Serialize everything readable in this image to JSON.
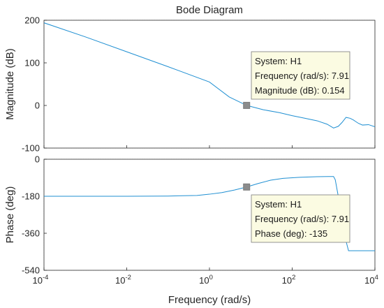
{
  "title": "Bode Diagram",
  "xlabel": "Frequency  (rad/s)",
  "colors": {
    "series": "#1f8fd2",
    "datatip_bg": "#fbfbe2",
    "marker": "#8c8c8c"
  },
  "chart_data": [
    {
      "type": "line",
      "panel": "magnitude",
      "title": "Bode Diagram",
      "xlabel": "Frequency  (rad/s)",
      "ylabel": "Magnitude (dB)",
      "xscale": "log",
      "xlim": [
        0.0001,
        10000
      ],
      "ylim": [
        -100,
        200
      ],
      "grid": true,
      "x_ticks": [
        {
          "value": 0.0001,
          "base": "10",
          "exp": "-4"
        },
        {
          "value": 0.01,
          "base": "10",
          "exp": "-2"
        },
        {
          "value": 1,
          "base": "10",
          "exp": "0"
        },
        {
          "value": 100,
          "base": "10",
          "exp": "2"
        },
        {
          "value": 10000,
          "base": "10",
          "exp": "4"
        }
      ],
      "y_ticks": [
        {
          "value": 200,
          "label": "200"
        },
        {
          "value": 100,
          "label": "100"
        },
        {
          "value": 0,
          "label": "0"
        },
        {
          "value": -100,
          "label": "-100"
        }
      ],
      "series": [
        {
          "x": [
            0.0001,
            0.001,
            0.01,
            0.1,
            1,
            3,
            7.91,
            20,
            50,
            100,
            200,
            400,
            700,
            1000,
            1300,
            1600,
            2000,
            2500,
            3000,
            4000,
            5000,
            7000,
            10000
          ],
          "y": [
            194,
            161,
            126,
            91,
            55,
            20,
            0.154,
            -10,
            -17,
            -24,
            -30,
            -36,
            -44,
            -53,
            -49,
            -40,
            -28,
            -30,
            -34,
            -42,
            -46,
            -45,
            -50
          ]
        }
      ],
      "datatip": {
        "x": 7.91,
        "y": 0.154,
        "lines": [
          "System: H1",
          "Frequency (rad/s): 7.91",
          "Magnitude (dB): 0.154"
        ]
      }
    },
    {
      "type": "line",
      "panel": "phase",
      "xlabel": "Frequency  (rad/s)",
      "ylabel": "Phase (deg)",
      "xscale": "log",
      "xlim": [
        0.0001,
        10000
      ],
      "ylim": [
        -540,
        0
      ],
      "grid": true,
      "x_ticks": [
        {
          "value": 0.0001,
          "base": "10",
          "exp": "-4"
        },
        {
          "value": 0.01,
          "base": "10",
          "exp": "-2"
        },
        {
          "value": 1,
          "base": "10",
          "exp": "0"
        },
        {
          "value": 100,
          "base": "10",
          "exp": "2"
        },
        {
          "value": 10000,
          "base": "10",
          "exp": "4"
        }
      ],
      "y_ticks": [
        {
          "value": 0,
          "label": "0"
        },
        {
          "value": -180,
          "label": "-180"
        },
        {
          "value": -360,
          "label": "-360"
        },
        {
          "value": -540,
          "label": "-540"
        }
      ],
      "series": [
        {
          "x": [
            0.0001,
            0.01,
            0.1,
            0.5,
            1,
            2,
            4,
            7.91,
            15,
            30,
            60,
            150,
            400,
            750,
            1000,
            1100,
            1300,
            1600,
            1900,
            2200,
            2300,
            3000,
            5000,
            10000
          ],
          "y": [
            -180,
            -180,
            -179,
            -176,
            -170,
            -162,
            -150,
            -135,
            -118,
            -102,
            -93,
            -88,
            -85,
            -84,
            -84,
            -100,
            -180,
            -290,
            -380,
            -430,
            -445,
            -445,
            -445,
            -445
          ]
        }
      ],
      "datatip": {
        "x": 7.91,
        "y": -135,
        "lines": [
          "System: H1",
          "Frequency (rad/s): 7.91",
          "Phase (deg): -135"
        ]
      }
    }
  ]
}
